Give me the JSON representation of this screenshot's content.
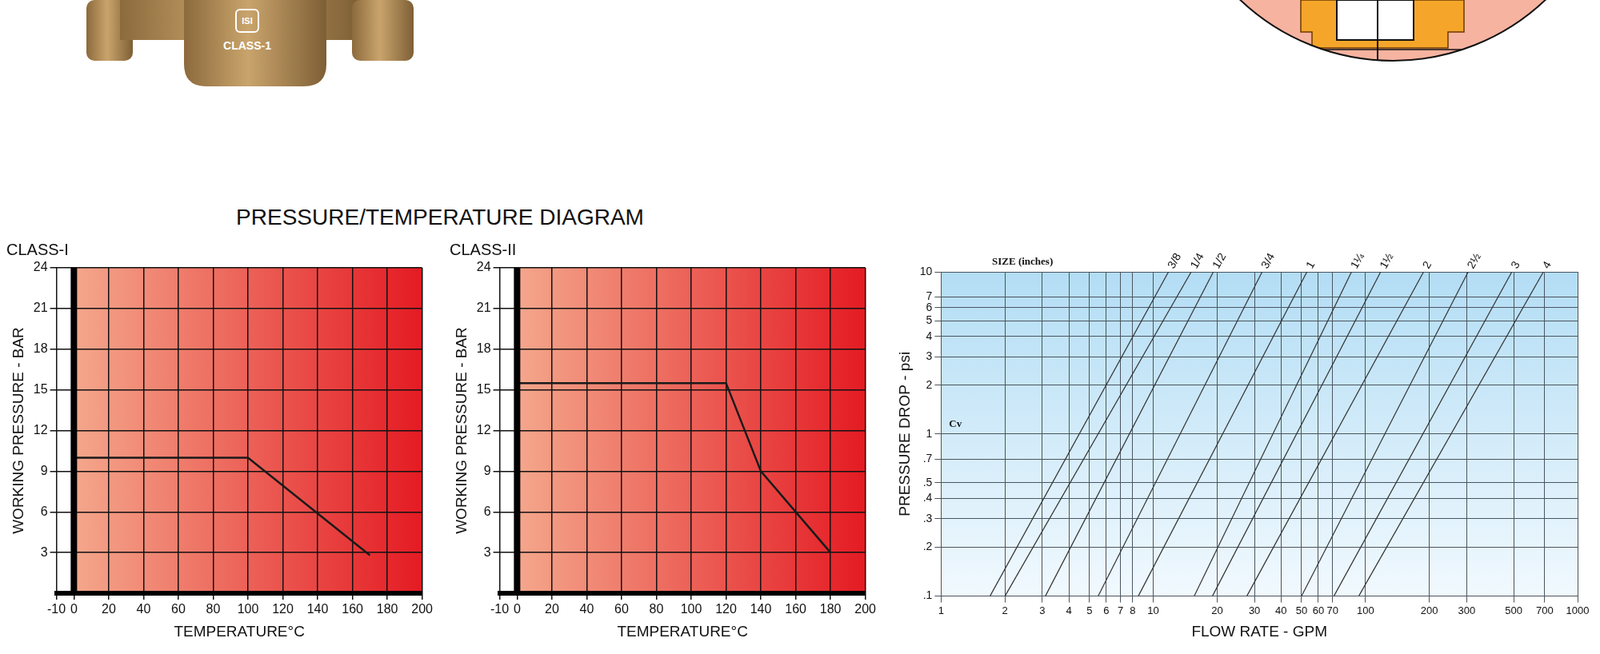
{
  "title": "PRESSURE/TEMPERATURE DIAGRAM",
  "photo": {
    "mark": "ISI",
    "label": "CLASS-1"
  },
  "chart_data": [
    {
      "type": "line",
      "title": "CLASS-I",
      "x_label": "TEMPERATURE°C",
      "y_label": "WORKING PRESSURE - BAR",
      "x": [
        0,
        100,
        170
      ],
      "values": [
        10,
        10,
        2.8
      ],
      "color": "#1a1a1a",
      "xlim": [
        -10,
        200
      ],
      "xticks": [
        -10,
        0,
        20,
        40,
        60,
        80,
        100,
        120,
        140,
        160,
        180,
        200
      ],
      "ylim": [
        0,
        24
      ],
      "yticks": [
        3,
        6,
        9,
        12,
        15,
        18,
        21,
        24
      ],
      "grid": true
    },
    {
      "type": "line",
      "title": "CLASS-II",
      "x_label": "TEMPERATURE°C",
      "y_label": "WORKING PRESSURE - BAR",
      "x": [
        0,
        120,
        140,
        180
      ],
      "values": [
        15.5,
        15.5,
        9,
        3
      ],
      "color": "#1a1a1a",
      "xlim": [
        -10,
        200
      ],
      "xticks": [
        -10,
        0,
        20,
        40,
        60,
        80,
        100,
        120,
        140,
        160,
        180,
        200
      ],
      "ylim": [
        0,
        24
      ],
      "yticks": [
        3,
        6,
        9,
        12,
        15,
        18,
        21,
        24
      ],
      "grid": true
    },
    {
      "type": "line",
      "x_label": "FLOW RATE - GPM",
      "y_label": "PRESSURE DROP - psi",
      "annotations": [
        "SIZE (inches)",
        "Cv"
      ],
      "log": true,
      "grid": true,
      "xlim": [
        1,
        1000
      ],
      "xticks": [
        1,
        2,
        3,
        4,
        5,
        6,
        7,
        8,
        10,
        20,
        30,
        40,
        50,
        60,
        70,
        100,
        200,
        300,
        500,
        700,
        1000
      ],
      "ylim": [
        0.1,
        10
      ],
      "yticks": [
        {
          "value": 0.1,
          "label": ".1"
        },
        {
          "value": 0.2,
          "label": ".2"
        },
        {
          "value": 0.3,
          "label": ".3"
        },
        {
          "value": 0.4,
          "label": ".4"
        },
        {
          "value": 0.5,
          "label": ".5"
        },
        {
          "value": 0.7,
          "label": ".7"
        },
        1,
        2,
        3,
        4,
        5,
        6,
        7,
        10
      ],
      "series": [
        {
          "name": "3/8",
          "color": "#333333",
          "x": [
            1.7,
            11.8
          ],
          "values": [
            0.1,
            10
          ]
        },
        {
          "name": "1/4",
          "color": "#333333",
          "x": [
            2.0,
            15.1
          ],
          "values": [
            0.1,
            10
          ]
        },
        {
          "name": "1/2",
          "color": "#333333",
          "x": [
            3.1,
            19.2
          ],
          "values": [
            0.1,
            10
          ]
        },
        {
          "name": "3/4",
          "color": "#333333",
          "x": [
            5.5,
            32.6
          ],
          "values": [
            0.1,
            10
          ]
        },
        {
          "name": "1",
          "color": "#333333",
          "x": [
            8.5,
            53
          ],
          "values": [
            0.1,
            10
          ]
        },
        {
          "name": "1¼",
          "color": "#333333",
          "x": [
            15.6,
            86
          ],
          "values": [
            0.1,
            10
          ]
        },
        {
          "name": "1½",
          "color": "#333333",
          "x": [
            19,
            118
          ],
          "values": [
            0.1,
            10
          ]
        },
        {
          "name": "2",
          "color": "#333333",
          "x": [
            27.6,
            188
          ],
          "values": [
            0.1,
            10
          ]
        },
        {
          "name": "2½",
          "color": "#333333",
          "x": [
            50,
            305
          ],
          "values": [
            0.1,
            10
          ]
        },
        {
          "name": "3",
          "color": "#333333",
          "x": [
            71,
            490
          ],
          "values": [
            0.1,
            10
          ]
        },
        {
          "name": "4",
          "color": "#333333",
          "x": [
            93,
            690
          ],
          "values": [
            0.1,
            10
          ]
        }
      ]
    }
  ]
}
